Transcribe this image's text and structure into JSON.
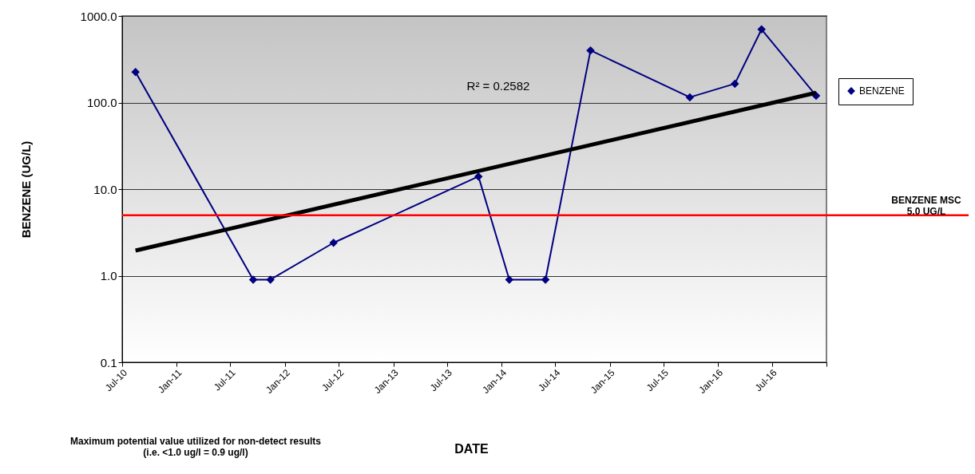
{
  "chart_data": {
    "type": "line",
    "xlabel": "DATE",
    "ylabel": "BENZENE (UG/L)",
    "x": [
      "2010-08-15",
      "2011-09-16",
      "2011-11-13",
      "2012-06-13",
      "2013-10-15",
      "2014-01-27",
      "2014-05-29",
      "2014-10-28",
      "2015-09-28",
      "2016-02-27",
      "2016-05-27",
      "2016-11-27"
    ],
    "series": [
      {
        "name": "BENZENE",
        "color": "#000080",
        "marker": "diamond",
        "values": [
          225,
          0.9,
          0.9,
          2.4,
          14,
          0.9,
          0.9,
          400,
          115,
          165,
          700,
          120
        ]
      },
      {
        "type": "line",
        "color": "#000000",
        "marker": "none",
        "x": [
          "2010-08-15",
          "2016-11-27"
        ],
        "values": [
          1.95,
          130
        ]
      }
    ],
    "log": true,
    "ylim": [
      0.1,
      1000
    ],
    "yticks": [
      {
        "value": 0.1,
        "label": "0.1"
      },
      {
        "value": 1,
        "label": "1.0"
      },
      {
        "value": 10,
        "label": "10.0"
      },
      {
        "value": 100,
        "label": "100.0"
      },
      {
        "value": 1000,
        "label": "1000.0"
      }
    ],
    "xlim": [
      "2010-07-01",
      "2017-01-01"
    ],
    "xticks": [
      {
        "value": "2010-07-01",
        "label": "Jul-10"
      },
      {
        "value": "2011-01-01",
        "label": "Jan-11"
      },
      {
        "value": "2011-07-01",
        "label": "Jul-11"
      },
      {
        "value": "2012-01-01",
        "label": "Jan-12"
      },
      {
        "value": "2012-07-01",
        "label": "Jul-12"
      },
      {
        "value": "2013-01-01",
        "label": "Jan-13"
      },
      {
        "value": "2013-07-01",
        "label": "Jul-13"
      },
      {
        "value": "2014-01-01",
        "label": "Jan-14"
      },
      {
        "value": "2014-07-01",
        "label": "Jul-14"
      },
      {
        "value": "2015-01-01",
        "label": "Jan-15"
      },
      {
        "value": "2015-07-01",
        "label": "Jul-15"
      },
      {
        "value": "2016-01-01",
        "label": "Jan-16"
      },
      {
        "value": "2016-07-01",
        "label": "Jul-16"
      },
      {
        "value": "2017-01-01",
        "label": null
      }
    ],
    "ref_lines": [
      {
        "axis": "y",
        "value": 5.0,
        "label": "BENZENE MSC\n5.0 UG/L",
        "color": "#ff0000"
      }
    ],
    "annotations": [
      "R² = 0.2582",
      "Maximum potential value utilized for non-detect results\n(i.e. <1.0 ug/l = 0.9 ug/l)"
    ],
    "grid": "y",
    "legend": "right",
    "line_style": "solid"
  }
}
